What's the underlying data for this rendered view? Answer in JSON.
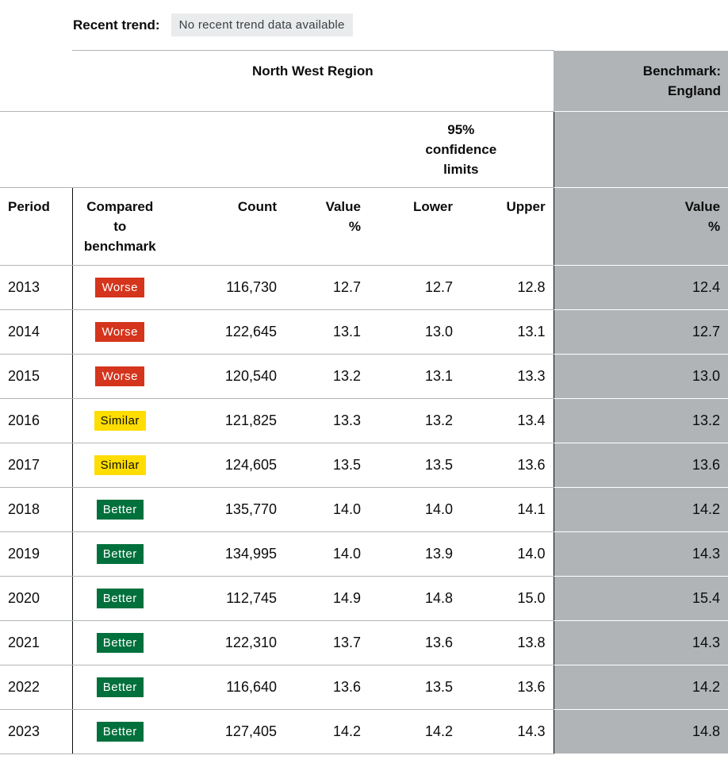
{
  "recent_trend": {
    "label": "Recent trend:",
    "value": "No recent trend data available"
  },
  "header": {
    "region": "North West Region",
    "benchmark_line1": "Benchmark:",
    "benchmark_line2": "England",
    "ci_line1": "95%",
    "ci_line2": "confidence",
    "ci_line3": "limits"
  },
  "columns": {
    "period": "Period",
    "compared_line1": "Compared",
    "compared_line2": "to",
    "compared_line3": "benchmark",
    "count": "Count",
    "value_line1": "Value",
    "value_line2": "%",
    "lower": "Lower",
    "upper": "Upper",
    "bench_value_line1": "Value",
    "bench_value_line2": "%"
  },
  "status_colors": {
    "Worse": "#d4351c",
    "Similar": "#ffdd00",
    "Better": "#00703c",
    "benchmark_bg": "#b1b4b6"
  },
  "rows": [
    {
      "period": "2013",
      "compared": "Worse",
      "count": "116,730",
      "value": "12.7",
      "lower": "12.7",
      "upper": "12.8",
      "benchmark": "12.4"
    },
    {
      "period": "2014",
      "compared": "Worse",
      "count": "122,645",
      "value": "13.1",
      "lower": "13.0",
      "upper": "13.1",
      "benchmark": "12.7"
    },
    {
      "period": "2015",
      "compared": "Worse",
      "count": "120,540",
      "value": "13.2",
      "lower": "13.1",
      "upper": "13.3",
      "benchmark": "13.0"
    },
    {
      "period": "2016",
      "compared": "Similar",
      "count": "121,825",
      "value": "13.3",
      "lower": "13.2",
      "upper": "13.4",
      "benchmark": "13.2"
    },
    {
      "period": "2017",
      "compared": "Similar",
      "count": "124,605",
      "value": "13.5",
      "lower": "13.5",
      "upper": "13.6",
      "benchmark": "13.6"
    },
    {
      "period": "2018",
      "compared": "Better",
      "count": "135,770",
      "value": "14.0",
      "lower": "14.0",
      "upper": "14.1",
      "benchmark": "14.2"
    },
    {
      "period": "2019",
      "compared": "Better",
      "count": "134,995",
      "value": "14.0",
      "lower": "13.9",
      "upper": "14.0",
      "benchmark": "14.3"
    },
    {
      "period": "2020",
      "compared": "Better",
      "count": "112,745",
      "value": "14.9",
      "lower": "14.8",
      "upper": "15.0",
      "benchmark": "15.4"
    },
    {
      "period": "2021",
      "compared": "Better",
      "count": "122,310",
      "value": "13.7",
      "lower": "13.6",
      "upper": "13.8",
      "benchmark": "14.3"
    },
    {
      "period": "2022",
      "compared": "Better",
      "count": "116,640",
      "value": "13.6",
      "lower": "13.5",
      "upper": "13.6",
      "benchmark": "14.2"
    },
    {
      "period": "2023",
      "compared": "Better",
      "count": "127,405",
      "value": "14.2",
      "lower": "14.2",
      "upper": "14.3",
      "benchmark": "14.8"
    }
  ]
}
